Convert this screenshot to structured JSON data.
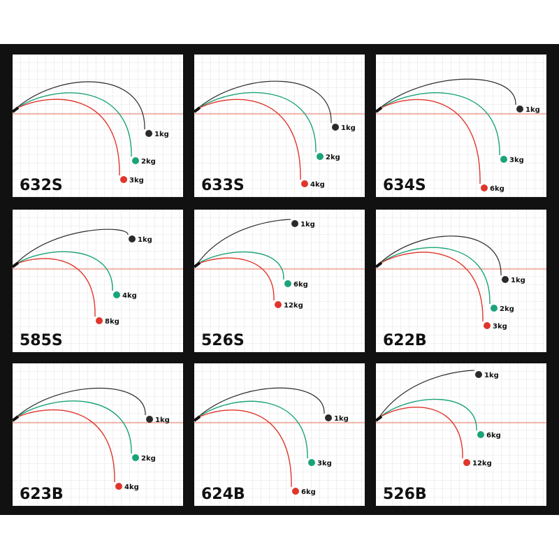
{
  "panels": [
    {
      "model": "632S",
      "loads": [
        "1kg",
        "2kg",
        "3kg"
      ]
    },
    {
      "model": "633S",
      "loads": [
        "1kg",
        "2kg",
        "4kg"
      ]
    },
    {
      "model": "634S",
      "loads": [
        "1kg",
        "3kg",
        "6kg"
      ]
    },
    {
      "model": "585S",
      "loads": [
        "1kg",
        "4kg",
        "8kg"
      ]
    },
    {
      "model": "526S",
      "loads": [
        "1kg",
        "6kg",
        "12kg"
      ]
    },
    {
      "model": "622B",
      "loads": [
        "1kg",
        "2kg",
        "3kg"
      ]
    },
    {
      "model": "623B",
      "loads": [
        "1kg",
        "2kg",
        "4kg"
      ]
    },
    {
      "model": "624B",
      "loads": [
        "1kg",
        "3kg",
        "6kg"
      ]
    },
    {
      "model": "526B",
      "loads": [
        "1kg",
        "6kg",
        "12kg"
      ]
    }
  ]
}
